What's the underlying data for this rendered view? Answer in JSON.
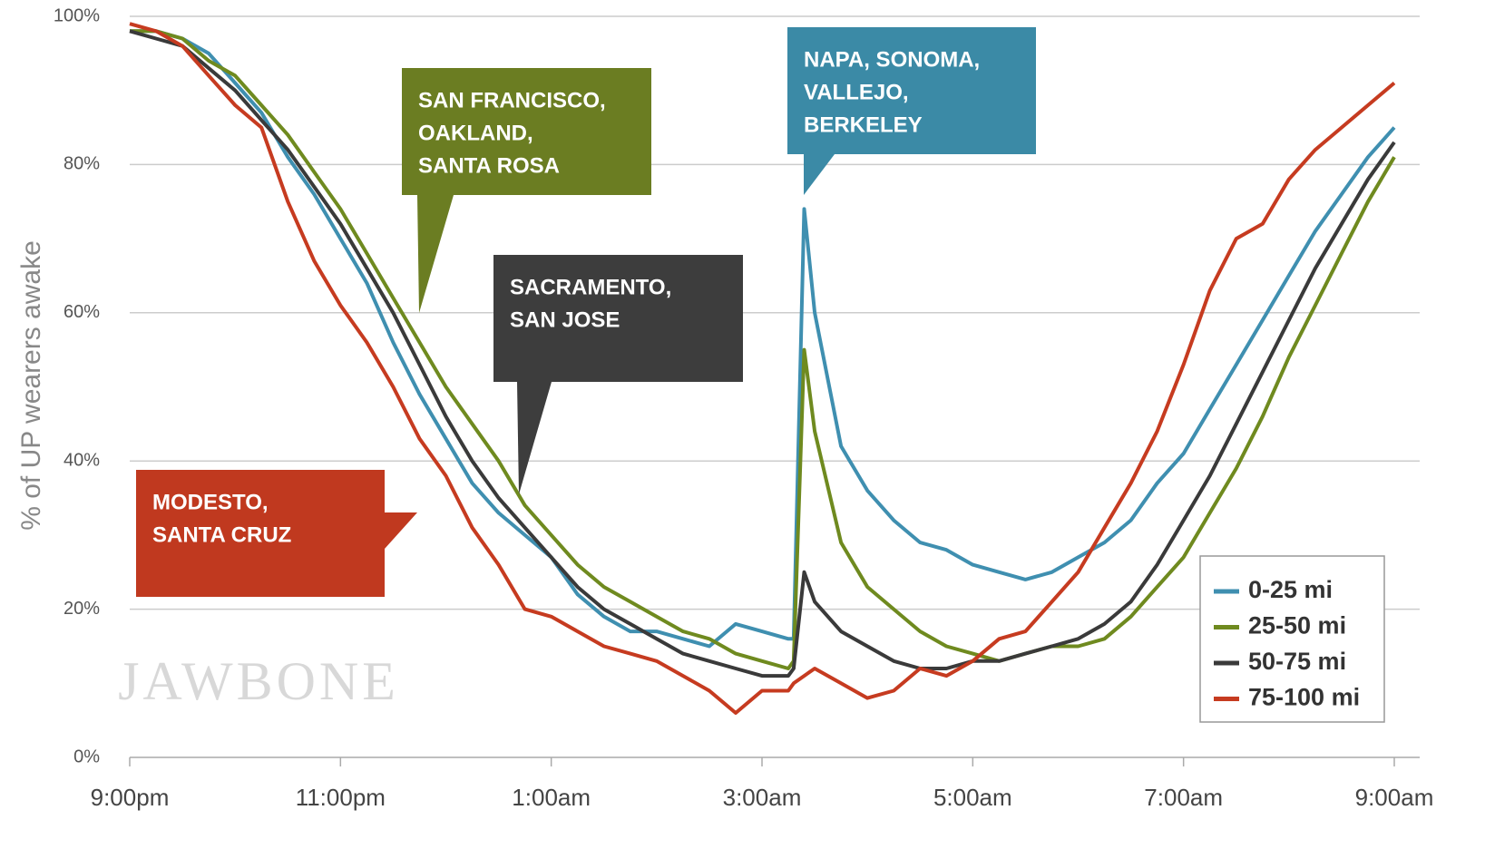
{
  "chart_data": {
    "type": "line",
    "y_label": "% of UP wearers awake",
    "watermark": "JAWBONE",
    "x": [
      0,
      0.25,
      0.5,
      0.75,
      1,
      1.25,
      1.5,
      1.75,
      2,
      2.25,
      2.5,
      2.75,
      3,
      3.25,
      3.5,
      3.75,
      4,
      4.25,
      4.5,
      4.75,
      5,
      5.25,
      5.5,
      5.75,
      6,
      6.25,
      6.3,
      6.4,
      6.5,
      6.75,
      7,
      7.25,
      7.5,
      7.75,
      8,
      8.25,
      8.5,
      8.75,
      9,
      9.25,
      9.5,
      9.75,
      10,
      10.25,
      10.5,
      10.75,
      11,
      11.25,
      11.5,
      11.75,
      12
    ],
    "xlim": [
      0,
      12
    ],
    "xticks": [
      {
        "value": 0,
        "label": "9:00pm"
      },
      {
        "value": 2,
        "label": "11:00pm"
      },
      {
        "value": 4,
        "label": "1:00am"
      },
      {
        "value": 6,
        "label": "3:00am"
      },
      {
        "value": 8,
        "label": "5:00am"
      },
      {
        "value": 10,
        "label": "7:00am"
      },
      {
        "value": 12,
        "label": "9:00am"
      }
    ],
    "ylim": [
      0,
      100
    ],
    "yticks": [
      {
        "value": 0,
        "label": "0%"
      },
      {
        "value": 20,
        "label": "20%"
      },
      {
        "value": 40,
        "label": "40%"
      },
      {
        "value": 60,
        "label": "60%"
      },
      {
        "value": 80,
        "label": "80%"
      },
      {
        "value": 100,
        "label": "100%"
      }
    ],
    "grid": true,
    "legend": "lower right",
    "series": [
      {
        "name": "0-25 mi",
        "color": "#3f8fb0",
        "values": [
          98,
          98,
          97,
          95,
          91,
          87,
          81,
          76,
          70,
          64,
          56,
          49,
          43,
          37,
          33,
          30,
          27,
          22,
          19,
          17,
          17,
          16,
          15,
          18,
          17,
          16,
          16,
          74,
          60,
          42,
          36,
          32,
          29,
          28,
          26,
          25,
          24,
          25,
          27,
          29,
          32,
          37,
          41,
          47,
          53,
          59,
          65,
          71,
          76,
          81,
          85
        ]
      },
      {
        "name": "25-50 mi",
        "color": "#6f8a1f",
        "values": [
          98,
          98,
          97,
          94,
          92,
          88,
          84,
          79,
          74,
          68,
          62,
          56,
          50,
          45,
          40,
          34,
          30,
          26,
          23,
          21,
          19,
          17,
          16,
          14,
          13,
          12,
          13,
          55,
          44,
          29,
          23,
          20,
          17,
          15,
          14,
          13,
          14,
          15,
          15,
          16,
          19,
          23,
          27,
          33,
          39,
          46,
          54,
          61,
          68,
          75,
          81
        ]
      },
      {
        "name": "50-75 mi",
        "color": "#3a3a3a",
        "values": [
          98,
          97,
          96,
          93,
          90,
          86,
          82,
          77,
          72,
          66,
          60,
          53,
          46,
          40,
          35,
          31,
          27,
          23,
          20,
          18,
          16,
          14,
          13,
          12,
          11,
          11,
          12,
          25,
          21,
          17,
          15,
          13,
          12,
          12,
          13,
          13,
          14,
          15,
          16,
          18,
          21,
          26,
          32,
          38,
          45,
          52,
          59,
          66,
          72,
          78,
          83
        ]
      },
      {
        "name": "75-100 mi",
        "color": "#c63b20",
        "values": [
          99,
          98,
          96,
          92,
          88,
          85,
          75,
          67,
          61,
          56,
          50,
          43,
          38,
          31,
          26,
          20,
          19,
          17,
          15,
          14,
          13,
          11,
          9,
          6,
          9,
          9,
          10,
          11,
          12,
          10,
          8,
          9,
          12,
          11,
          13,
          16,
          17,
          21,
          25,
          31,
          37,
          44,
          53,
          63,
          70,
          72,
          78,
          82,
          85,
          88,
          91
        ]
      }
    ],
    "annotations": [
      {
        "lines": [
          "SAN FRANCISCO,",
          "OAKLAND,",
          "SANTA ROSA"
        ],
        "color": "#6b7d22"
      },
      {
        "lines": [
          "NAPA, SONOMA,",
          "VALLEJO,",
          "BERKELEY"
        ],
        "color": "#3b8aa6"
      },
      {
        "lines": [
          "SACRAMENTO,",
          "SAN JOSE"
        ],
        "color": "#3d3d3d"
      },
      {
        "lines": [
          "MODESTO,",
          "SANTA CRUZ"
        ],
        "color": "#c0391f"
      }
    ]
  }
}
